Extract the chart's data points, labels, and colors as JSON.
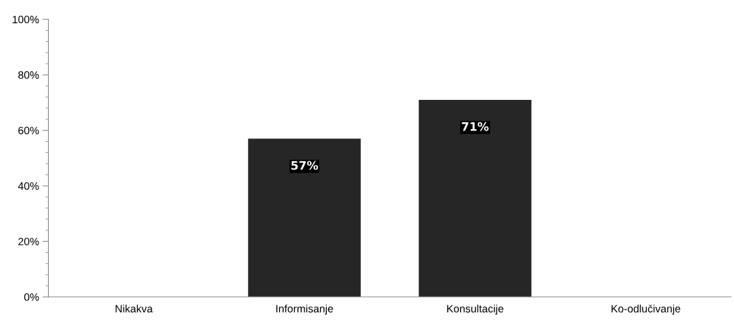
{
  "chart_data": {
    "type": "bar",
    "categories": [
      "Nikakva",
      "Informisanje",
      "Konsultacije",
      "Ko-odlučivanje"
    ],
    "values": [
      0,
      57,
      71,
      0
    ],
    "value_labels": [
      null,
      "57%",
      "71%",
      null
    ],
    "color": "#262626",
    "ylim": [
      0,
      100
    ],
    "yticks": [
      {
        "value": 0,
        "label": "0%"
      },
      {
        "value": 20,
        "label": "20%"
      },
      {
        "value": 40,
        "label": "40%"
      },
      {
        "value": 60,
        "label": "60%"
      },
      {
        "value": 80,
        "label": "80%"
      },
      {
        "value": 100,
        "label": "100%"
      }
    ],
    "grid": false
  }
}
